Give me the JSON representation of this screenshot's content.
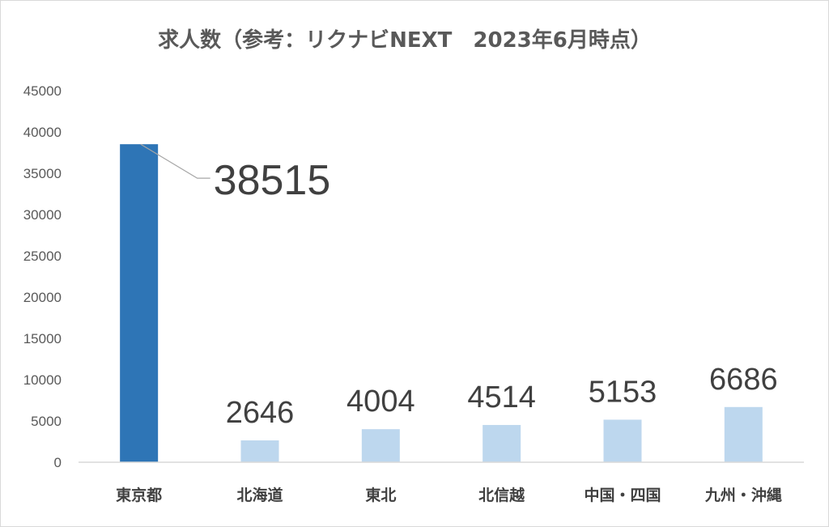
{
  "chart_data": {
    "type": "bar",
    "title": "求人数（参考：リクナビNEXT　2023年6月時点）",
    "categories": [
      "東京都",
      "北海道",
      "東北",
      "北信越",
      "中国・四国",
      "九州・沖縄"
    ],
    "values": [
      38515,
      2646,
      4004,
      4514,
      5153,
      6686
    ],
    "data_labels": [
      "38515",
      "2646",
      "4004",
      "4514",
      "5153",
      "6686"
    ],
    "ylim": [
      0,
      45000
    ],
    "yticks": [
      0,
      5000,
      10000,
      15000,
      20000,
      25000,
      30000,
      35000,
      40000,
      45000
    ],
    "ytick_labels": [
      "0",
      "5000",
      "10000",
      "15000",
      "20000",
      "25000",
      "30000",
      "35000",
      "40000",
      "45000"
    ],
    "grid": false,
    "legend": "none",
    "colors": {
      "highlight": "#2e75b6",
      "default": "#bdd7ee",
      "axis": "#d9d9d9",
      "leader_line": "#a6a6a6"
    },
    "highlight_index": 0
  }
}
